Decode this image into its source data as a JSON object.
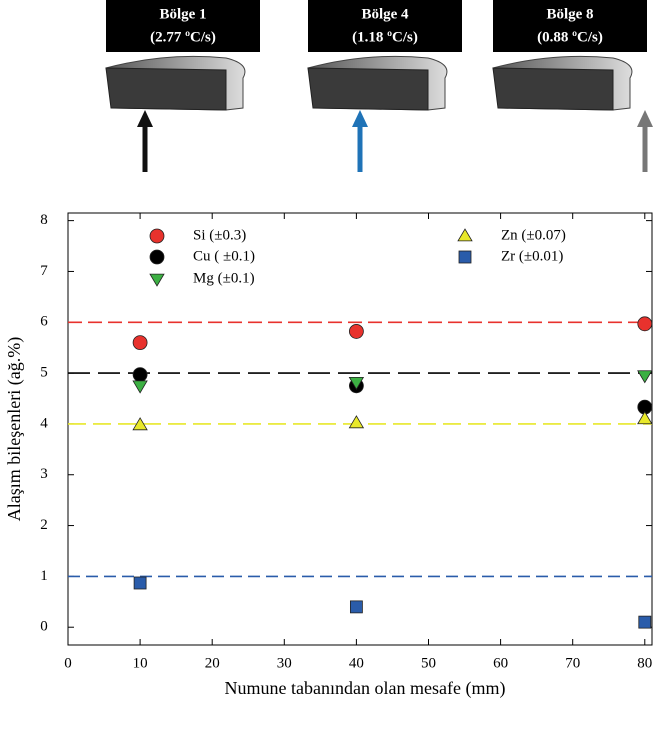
{
  "chart_data": {
    "type": "scatter",
    "regions": [
      {
        "label": "Bölge 1",
        "rate": "(2.77 ºC/s)",
        "arrow_color": "#111111"
      },
      {
        "label": "Bölge 4",
        "rate": "(1.18 ºC/s)",
        "arrow_color": "#1f73b7"
      },
      {
        "label": "Bölge 8",
        "rate": "(0.88 ºC/s)",
        "arrow_color": "#777777"
      }
    ],
    "x_label": "Numune tabanından olan mesafe (mm)",
    "y_label": "Alaşım bileşenleri (ağ.%)",
    "x": [
      10,
      40,
      80
    ],
    "series": [
      {
        "name": "Si (±0.3)",
        "color": "#e8322d",
        "marker": "circle",
        "values": [
          5.6,
          5.82,
          5.97
        ]
      },
      {
        "name": "Cu ( ±0.1)",
        "color": "#000000",
        "marker": "circle",
        "values": [
          4.97,
          4.75,
          4.33
        ]
      },
      {
        "name": "Mg (±0.1)",
        "color": "#3cb043",
        "marker": "triangle-down",
        "values": [
          4.75,
          4.82,
          4.95
        ]
      },
      {
        "name": "Zn (±0.07)",
        "color": "#e8e82a",
        "marker": "triangle-up",
        "values": [
          3.98,
          4.02,
          4.1
        ]
      },
      {
        "name": "Zr (±0.01)",
        "color": "#2a5caa",
        "marker": "square",
        "values": [
          0.87,
          0.4,
          0.1
        ]
      }
    ],
    "reference_lines": [
      {
        "value": 6,
        "color": "#e8322d"
      },
      {
        "value": 5,
        "color": "#000000"
      },
      {
        "value": 4,
        "color": "#e8e82a"
      },
      {
        "value": 1,
        "color": "#2a5caa"
      }
    ],
    "xlim": [
      0,
      81
    ],
    "ylim": [
      -0.35,
      8.15
    ],
    "xticks": [
      0,
      10,
      20,
      30,
      40,
      50,
      60,
      70,
      80
    ],
    "yticks": [
      0,
      1,
      2,
      3,
      4,
      5,
      6,
      7,
      8
    ]
  }
}
